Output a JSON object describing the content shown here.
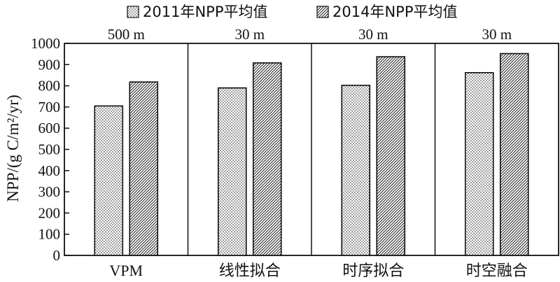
{
  "chart_data": {
    "type": "bar",
    "categories": [
      "VPM",
      "线性拟合",
      "时序拟合",
      "时空融合"
    ],
    "resolutions": [
      "500 m",
      "30 m",
      "30 m",
      "30 m"
    ],
    "series": [
      {
        "name": "2011年NPP平均值",
        "values": [
          705,
          790,
          802,
          862
        ]
      },
      {
        "name": "2014年NPP平均值",
        "values": [
          818,
          908,
          937,
          952
        ]
      }
    ],
    "ylabel": "NPP/(g C/m²/yr)",
    "ylim": [
      0,
      1000
    ],
    "yticks": [
      0,
      100,
      200,
      300,
      400,
      500,
      600,
      700,
      800,
      900,
      1000
    ],
    "grid": false,
    "legend_position": "top-center",
    "colors": {
      "series_2011_pattern": "dotted",
      "series_2014_pattern": "diagonal-hatch",
      "stroke": "#111111",
      "background": "#ffffff"
    }
  }
}
